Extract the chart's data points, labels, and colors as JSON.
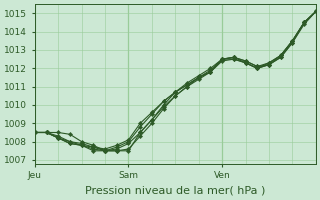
{
  "bg_color": "#cce8d4",
  "grid_color": "#99cc99",
  "line_color": "#2d5a27",
  "marker_color": "#2d5a27",
  "xlabel": "Pression niveau de la mer( hPa )",
  "xlabel_fontsize": 8,
  "tick_fontsize": 6.5,
  "ylim": [
    1006.8,
    1015.5
  ],
  "yticks": [
    1007,
    1008,
    1009,
    1010,
    1011,
    1012,
    1013,
    1014,
    1015
  ],
  "day_labels": [
    "Jeu",
    "Sam",
    "Ven"
  ],
  "total_hours": 72,
  "jeu_hour": 0,
  "sam_hour": 24,
  "ven_hour": 48,
  "series": [
    {
      "hours": [
        0,
        3,
        6,
        9,
        12,
        15,
        18,
        21,
        24,
        27,
        30,
        33,
        36,
        39,
        42,
        45,
        48,
        51,
        54,
        57,
        60,
        63,
        66,
        69,
        72
      ],
      "values": [
        1008.5,
        1008.5,
        1008.5,
        1008.4,
        1008.0,
        1007.8,
        1007.5,
        1007.5,
        1007.5,
        1008.5,
        1009.2,
        1010.0,
        1010.7,
        1011.2,
        1011.6,
        1012.0,
        1012.5,
        1012.5,
        1012.3,
        1012.0,
        1012.3,
        1012.7,
        1013.5,
        1014.5,
        1015.1
      ]
    },
    {
      "hours": [
        0,
        3,
        6,
        9,
        12,
        15,
        18,
        21,
        24,
        27,
        30,
        33,
        36,
        39,
        42,
        45,
        48,
        51,
        54,
        57,
        60,
        63,
        66,
        69,
        72
      ],
      "values": [
        1008.5,
        1008.5,
        1008.3,
        1008.0,
        1007.9,
        1007.7,
        1007.5,
        1007.5,
        1007.6,
        1008.3,
        1009.0,
        1009.8,
        1010.5,
        1011.0,
        1011.5,
        1011.9,
        1012.5,
        1012.6,
        1012.4,
        1012.1,
        1012.3,
        1012.7,
        1013.5,
        1014.5,
        1015.1
      ]
    },
    {
      "hours": [
        0,
        3,
        6,
        9,
        12,
        15,
        18,
        21,
        24,
        27,
        30,
        33,
        36,
        39,
        42,
        45,
        48,
        51,
        54,
        57,
        60,
        63,
        66,
        69,
        72
      ],
      "values": [
        1008.5,
        1008.5,
        1008.2,
        1007.9,
        1007.8,
        1007.5,
        1007.5,
        1007.6,
        1007.9,
        1008.5,
        1009.2,
        1009.9,
        1010.5,
        1011.0,
        1011.4,
        1011.8,
        1012.4,
        1012.5,
        1012.3,
        1012.0,
        1012.2,
        1012.6,
        1013.4,
        1014.4,
        1015.1
      ]
    },
    {
      "hours": [
        0,
        3,
        6,
        9,
        12,
        15,
        18,
        21,
        24,
        27,
        30,
        33,
        36,
        39,
        42,
        45,
        48,
        51,
        54,
        57,
        60,
        63,
        66,
        69,
        72
      ],
      "values": [
        1008.5,
        1008.5,
        1008.2,
        1007.9,
        1007.8,
        1007.6,
        1007.5,
        1007.7,
        1008.0,
        1008.8,
        1009.5,
        1010.2,
        1010.7,
        1011.1,
        1011.5,
        1011.8,
        1012.5,
        1012.6,
        1012.3,
        1012.0,
        1012.2,
        1012.6,
        1013.4,
        1014.5,
        1015.1
      ]
    },
    {
      "hours": [
        0,
        3,
        6,
        9,
        12,
        15,
        18,
        21,
        24,
        27,
        30,
        33,
        36,
        39,
        42,
        45,
        48,
        51,
        54,
        57,
        60,
        63,
        66,
        69,
        72
      ],
      "values": [
        1008.5,
        1008.5,
        1008.2,
        1008.0,
        1007.8,
        1007.7,
        1007.6,
        1007.8,
        1008.1,
        1009.0,
        1009.6,
        1010.2,
        1010.7,
        1011.1,
        1011.5,
        1011.8,
        1012.5,
        1012.6,
        1012.4,
        1012.1,
        1012.2,
        1012.7,
        1013.5,
        1014.5,
        1015.1
      ]
    }
  ]
}
